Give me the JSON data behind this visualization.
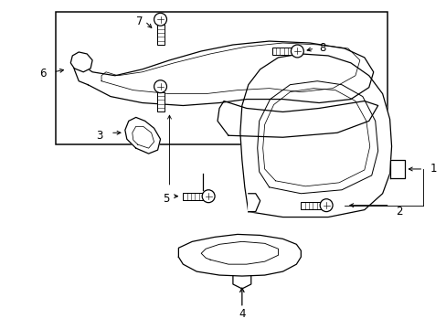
{
  "background_color": "#ffffff",
  "line_color": "#000000",
  "fig_width": 4.89,
  "fig_height": 3.6,
  "dpi": 100,
  "label_fontsize": 8.5,
  "lw": 0.9
}
